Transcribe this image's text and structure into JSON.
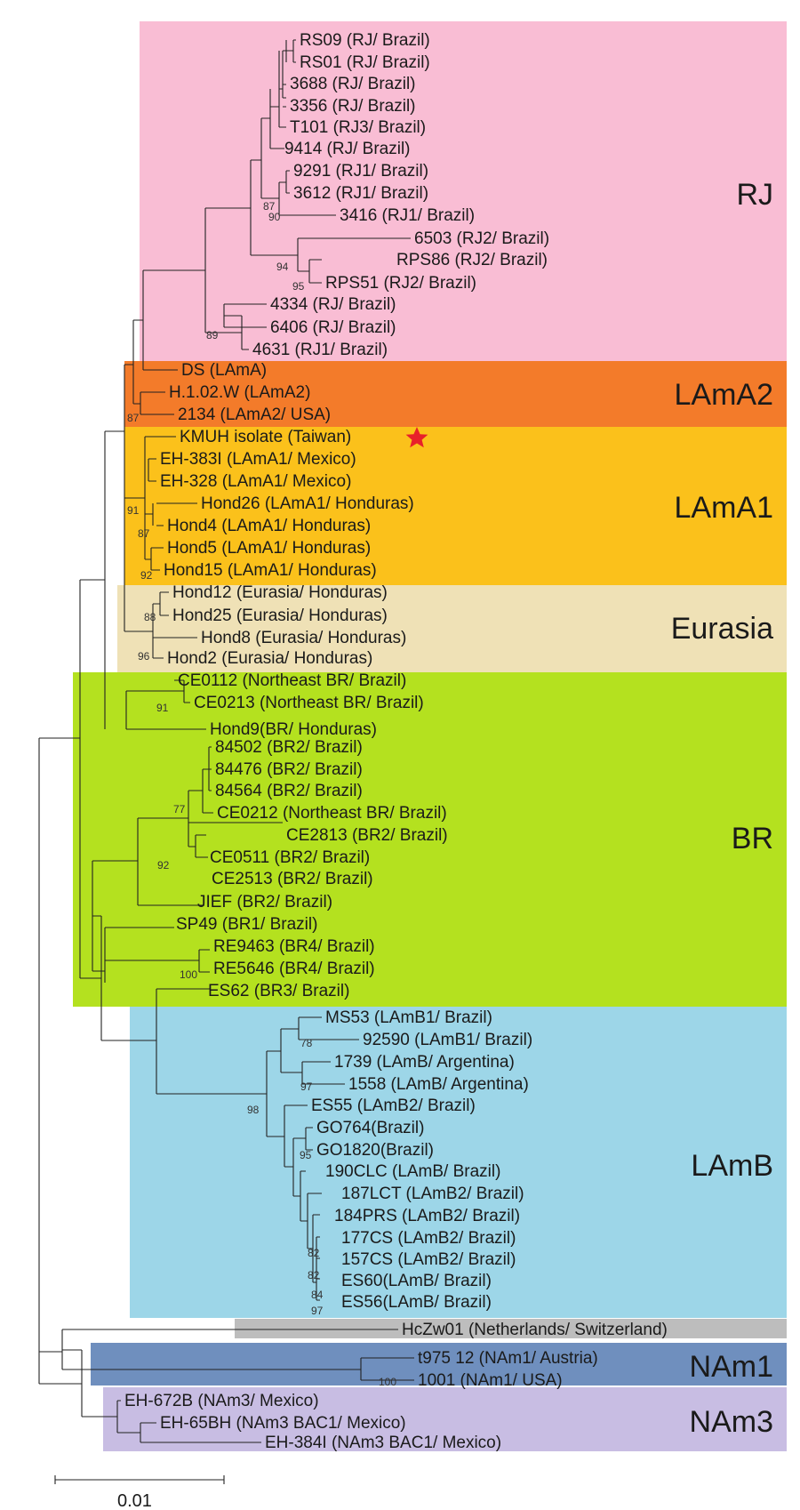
{
  "colors": {
    "RJ": "#f9bdd4",
    "LAmA2": "#f37b2a",
    "LAmA1": "#fbc11b",
    "Eurasia": "#efe1b6",
    "BR": "#b4e11f",
    "LAmB": "#9dd6e8",
    "Netherlands": "#bdbdbd",
    "NAm1": "#6f8fbe",
    "NAm3": "#c8bde3",
    "star": "#e8202a"
  },
  "clades": [
    {
      "key": "RJ",
      "label": "RJ"
    },
    {
      "key": "LAmA2",
      "label": "LAmA2"
    },
    {
      "key": "LAmA1",
      "label": "LAmA1"
    },
    {
      "key": "Eurasia",
      "label": "Eurasia"
    },
    {
      "key": "BR",
      "label": "BR"
    },
    {
      "key": "LAmB",
      "label": "LAmB"
    },
    {
      "key": "NAm1",
      "label": "NAm1"
    },
    {
      "key": "NAm3",
      "label": "NAm3"
    }
  ],
  "leaves": [
    "RS09 (RJ/ Brazil)",
    "RS01 (RJ/ Brazil)",
    "3688 (RJ/ Brazil)",
    "3356 (RJ/ Brazil)",
    "T101 (RJ3/ Brazil)",
    "9414 (RJ/ Brazil)",
    "9291 (RJ1/ Brazil)",
    "3612 (RJ1/ Brazil)",
    "3416 (RJ1/ Brazil)",
    "6503 (RJ2/ Brazil)",
    "RPS86 (RJ2/ Brazil)",
    "RPS51 (RJ2/ Brazil)",
    "4334 (RJ/ Brazil)",
    "6406 (RJ/ Brazil)",
    "4631 (RJ1/ Brazil)",
    "DS (LAmA)",
    "H.1.02.W (LAmA2)",
    "2134 (LAmA2/ USA)",
    "KMUH isolate (Taiwan)",
    "EH-383I (LAmA1/ Mexico)",
    "EH-328 (LAmA1/ Mexico)",
    "Hond26 (LAmA1/ Honduras)",
    "Hond4 (LAmA1/ Honduras)",
    "Hond5 (LAmA1/ Honduras)",
    "Hond15 (LAmA1/ Honduras)",
    "Hond12 (Eurasia/ Honduras)",
    "Hond25 (Eurasia/ Honduras)",
    "Hond8 (Eurasia/ Honduras)",
    "Hond2 (Eurasia/ Honduras)",
    "CE0112 (Northeast BR/ Brazil)",
    "CE0213 (Northeast BR/ Brazil)",
    "Hond9(BR/ Honduras)",
    "84502 (BR2/ Brazil)",
    "84476 (BR2/ Brazil)",
    "84564 (BR2/ Brazil)",
    "CE0212 (Northeast BR/ Brazil)",
    "CE2813 (BR2/ Brazil)",
    "CE0511 (BR2/ Brazil)",
    "CE2513 (BR2/ Brazil)",
    "JIEF (BR2/ Brazil)",
    "SP49 (BR1/ Brazil)",
    "RE9463 (BR4/ Brazil)",
    "RE5646 (BR4/ Brazil)",
    "ES62 (BR3/ Brazil)",
    "MS53 (LAmB1/ Brazil)",
    "92590 (LAmB1/ Brazil)",
    "1739 (LAmB/ Argentina)",
    "1558 (LAmB/ Argentina)",
    "ES55 (LAmB2/ Brazil)",
    "GO764(Brazil)",
    "GO1820(Brazil)",
    "190CLC (LAmB/ Brazil)",
    "187LCT (LAmB2/ Brazil)",
    "184PRS (LAmB2/ Brazil)",
    "177CS (LAmB2/ Brazil)",
    "157CS (LAmB2/ Brazil)",
    "ES60(LAmB/ Brazil)",
    "ES56(LAmB/ Brazil)",
    "HcZw01 (Netherlands/ Switzerland)",
    "t975 12 (NAm1/ Austria)",
    "1001 (NAm1/ USA)",
    "EH-672B (NAm3/ Mexico)",
    "EH-65BH (NAm3 BAC1/ Mexico)",
    "EH-384I (NAm3 BAC1/ Mexico)"
  ],
  "bootstraps": [
    "87",
    "90",
    "94",
    "95",
    "89",
    "87",
    "91",
    "87",
    "92",
    "88",
    "96",
    "91",
    "77",
    "92",
    "100",
    "78",
    "97",
    "98",
    "95",
    "82",
    "82",
    "84",
    "97",
    "100"
  ],
  "scale_bar": {
    "label": "0.01"
  },
  "star_icon": "red-star-icon"
}
